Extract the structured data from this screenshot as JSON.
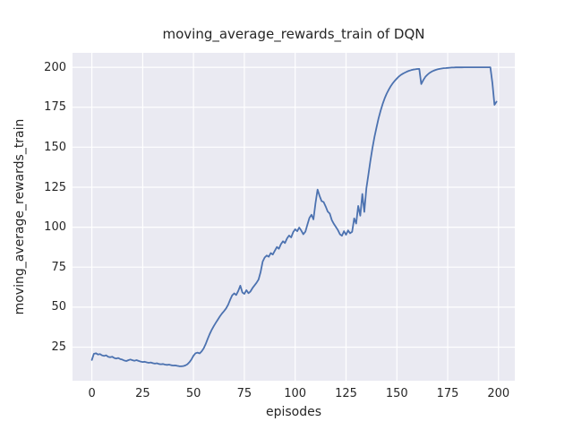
{
  "chart_data": {
    "type": "line",
    "title": "moving_average_rewards_train of DQN",
    "xlabel": "episodes",
    "ylabel": "moving_average_rewards_train",
    "legend": "none",
    "grid": true,
    "x_start": 0,
    "x_step": 1,
    "xticks": [
      0,
      25,
      50,
      75,
      100,
      125,
      150,
      175,
      200
    ],
    "yticks": [
      25,
      50,
      75,
      100,
      125,
      150,
      175,
      200
    ],
    "xlim": [
      -9.5,
      208
    ],
    "ylim": [
      4,
      209
    ],
    "values": [
      17.0,
      20.8,
      21.2,
      20.4,
      20.7,
      19.9,
      19.5,
      19.9,
      19.0,
      18.7,
      19.0,
      18.2,
      17.9,
      18.2,
      17.5,
      17.2,
      16.6,
      16.3,
      16.9,
      17.3,
      16.8,
      16.5,
      16.9,
      16.4,
      16.0,
      15.7,
      15.9,
      15.5,
      15.2,
      15.4,
      15.0,
      14.7,
      14.9,
      14.5,
      14.3,
      14.5,
      14.1,
      13.9,
      14.1,
      13.7,
      13.5,
      13.6,
      13.3,
      13.1,
      13.0,
      13.2,
      13.6,
      14.3,
      15.6,
      17.4,
      19.6,
      21.2,
      21.6,
      21.1,
      22.3,
      24.2,
      27.0,
      30.2,
      33.3,
      36.0,
      38.3,
      40.3,
      42.3,
      44.3,
      46.0,
      47.5,
      49.2,
      51.5,
      54.5,
      57.3,
      58.6,
      57.6,
      60.1,
      63.4,
      59.2,
      58.3,
      60.6,
      58.7,
      59.8,
      61.9,
      63.6,
      65.2,
      67.3,
      72.0,
      78.5,
      81.0,
      82.3,
      81.5,
      83.8,
      82.9,
      85.3,
      87.6,
      86.5,
      89.4,
      91.2,
      90.1,
      93.0,
      94.8,
      93.6,
      96.8,
      98.7,
      97.5,
      99.8,
      97.9,
      95.6,
      97.2,
      101.5,
      105.8,
      107.8,
      104.9,
      115.0,
      123.5,
      119.5,
      116.3,
      115.7,
      112.9,
      109.8,
      108.5,
      104.4,
      102.1,
      100.2,
      98.2,
      95.6,
      94.6,
      97.5,
      95.3,
      98.0,
      96.2,
      97.1,
      105.5,
      102.3,
      113.3,
      107.2,
      120.8,
      109.6,
      124.2,
      133.0,
      141.5,
      149.5,
      156.5,
      162.5,
      168.0,
      172.8,
      177.0,
      180.5,
      183.5,
      186.0,
      188.2,
      190.0,
      191.6,
      193.0,
      194.2,
      195.2,
      196.0,
      196.7,
      197.3,
      197.8,
      198.2,
      198.5,
      198.7,
      198.9,
      199.0,
      189.5,
      192.0,
      194.0,
      195.3,
      196.4,
      197.2,
      197.8,
      198.3,
      198.7,
      199.0,
      199.2,
      199.4,
      199.5,
      199.6,
      199.7,
      199.8,
      199.8,
      199.9,
      199.9,
      199.9,
      199.9,
      200.0,
      200.0,
      200.0,
      200.0,
      200.0,
      200.0,
      200.0,
      200.0,
      200.0,
      200.0,
      200.0,
      200.0,
      200.0,
      200.0,
      190.0,
      176.5,
      178.5
    ],
    "style": {
      "line_color": "#4c72b0",
      "plot_bg": "#eaeaf2",
      "grid_color": "#ffffff",
      "figure_bg": "#ffffff",
      "text_color": "#262626"
    }
  }
}
